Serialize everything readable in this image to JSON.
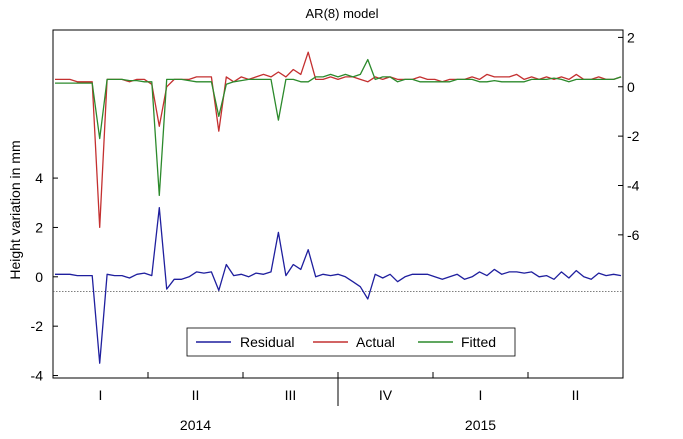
{
  "chart_data": {
    "type": "line",
    "title": "AR(8) model",
    "ylabel_left": "Height variation in mm",
    "ylabel_right": "",
    "left_axis": {
      "ticks": [
        "4",
        "2",
        "0",
        "-2",
        "-4"
      ],
      "tick_values": [
        4,
        2,
        0,
        -2,
        -4
      ],
      "range": [
        -4.1,
        10.0
      ]
    },
    "right_axis": {
      "ticks": [
        "2",
        "0",
        "-2",
        "-4",
        "-6"
      ],
      "tick_values": [
        2,
        0,
        -2,
        -4,
        -6
      ],
      "range": [
        -11.8,
        2.3
      ]
    },
    "x_periods": {
      "labels": [
        "I",
        "II",
        "III",
        "IV",
        "I",
        "II"
      ],
      "years": [
        "2014",
        "2015"
      ]
    },
    "reference_line_left": -0.6,
    "legend": {
      "placement": "bottom-center",
      "entries": [
        {
          "name": "Residual",
          "color": "#1f1f9e"
        },
        {
          "name": "Actual",
          "color": "#c43030"
        },
        {
          "name": "Fitted",
          "color": "#2c8a2c"
        }
      ]
    },
    "series": [
      {
        "name": "Residual",
        "axis": "left",
        "color": "#1f1f9e",
        "values": [
          0.1,
          0.1,
          0.1,
          0.05,
          0.05,
          0.05,
          -3.5,
          0.1,
          0.05,
          0.05,
          -0.05,
          0.1,
          0.15,
          0.05,
          2.8,
          -0.5,
          -0.1,
          -0.1,
          0.0,
          0.2,
          0.15,
          0.2,
          -0.55,
          0.5,
          0.05,
          0.1,
          0.0,
          0.15,
          0.1,
          0.2,
          1.8,
          0.05,
          0.5,
          0.3,
          1.1,
          0.0,
          0.1,
          0.05,
          0.1,
          0.0,
          -0.2,
          -0.4,
          -0.9,
          0.1,
          -0.05,
          0.1,
          -0.2,
          0.0,
          0.1,
          0.1,
          0.1,
          0.0,
          -0.1,
          0.0,
          0.1,
          -0.1,
          0.0,
          0.2,
          0.05,
          0.3,
          0.1,
          0.2,
          0.2,
          0.15,
          0.2,
          0.0,
          0.05,
          -0.1,
          0.2,
          -0.05,
          0.25,
          0.0,
          -0.1,
          0.15,
          0.05,
          0.1,
          0.05
        ]
      },
      {
        "name": "Actual",
        "axis": "right",
        "color": "#c43030",
        "values": [
          0.3,
          0.3,
          0.3,
          0.2,
          0.2,
          0.2,
          -5.7,
          0.3,
          0.3,
          0.3,
          0.2,
          0.3,
          0.3,
          0.1,
          -1.6,
          0.0,
          0.3,
          0.3,
          0.3,
          0.4,
          0.4,
          0.4,
          -1.8,
          0.4,
          0.2,
          0.4,
          0.3,
          0.4,
          0.5,
          0.4,
          0.6,
          0.4,
          0.7,
          0.5,
          1.4,
          0.3,
          0.3,
          0.4,
          0.3,
          0.4,
          0.4,
          0.3,
          0.2,
          0.4,
          0.3,
          0.4,
          0.3,
          0.3,
          0.3,
          0.4,
          0.3,
          0.3,
          0.2,
          0.3,
          0.3,
          0.3,
          0.4,
          0.3,
          0.5,
          0.4,
          0.4,
          0.4,
          0.5,
          0.3,
          0.4,
          0.3,
          0.4,
          0.3,
          0.4,
          0.3,
          0.5,
          0.3,
          0.3,
          0.4,
          0.3,
          0.3,
          0.4
        ]
      },
      {
        "name": "Fitted",
        "axis": "right",
        "color": "#2c8a2c",
        "values": [
          0.15,
          0.15,
          0.15,
          0.15,
          0.15,
          0.15,
          -2.1,
          0.3,
          0.3,
          0.3,
          0.25,
          0.25,
          0.2,
          0.2,
          -4.4,
          0.3,
          0.3,
          0.3,
          0.25,
          0.2,
          0.2,
          0.2,
          -1.2,
          0.1,
          0.2,
          0.25,
          0.3,
          0.3,
          0.3,
          0.3,
          -1.35,
          0.3,
          0.3,
          0.2,
          0.2,
          0.4,
          0.4,
          0.5,
          0.4,
          0.5,
          0.4,
          0.5,
          1.1,
          0.3,
          0.4,
          0.4,
          0.2,
          0.3,
          0.3,
          0.2,
          0.2,
          0.2,
          0.2,
          0.2,
          0.3,
          0.3,
          0.3,
          0.2,
          0.2,
          0.25,
          0.2,
          0.2,
          0.2,
          0.2,
          0.3,
          0.3,
          0.3,
          0.35,
          0.3,
          0.2,
          0.3,
          0.3,
          0.3,
          0.3,
          0.3,
          0.3,
          0.4
        ]
      }
    ]
  }
}
